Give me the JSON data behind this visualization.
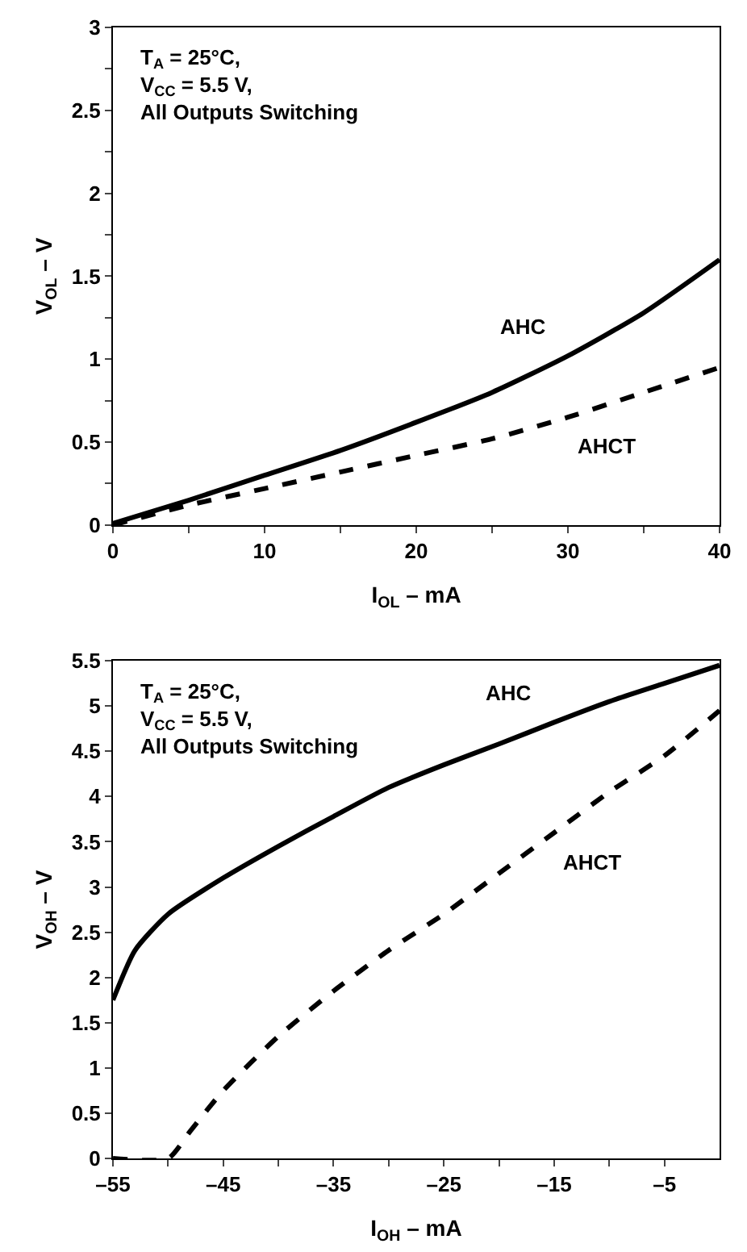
{
  "chart_data": [
    {
      "type": "line",
      "xlabel": "I$_{OL}$ – mA",
      "ylabel": "V$_{OL}$ – V",
      "xlim": [
        0,
        40
      ],
      "ylim": [
        0,
        3
      ],
      "xticks": [
        0,
        {
          "value": 5,
          "label": null
        },
        10,
        {
          "value": 15,
          "label": null
        },
        20,
        {
          "value": 25,
          "label": null
        },
        30,
        {
          "value": 35,
          "label": null
        },
        40
      ],
      "yticks": [
        0,
        {
          "value": 0.25,
          "label": null
        },
        0.5,
        {
          "value": 0.75,
          "label": null
        },
        1,
        {
          "value": 1.25,
          "label": null
        },
        1.5,
        {
          "value": 1.75,
          "label": null
        },
        2,
        {
          "value": 2.25,
          "label": null
        },
        2.5,
        {
          "value": 2.75,
          "label": null
        },
        3
      ],
      "legend": false,
      "marker": "none",
      "series": [
        {
          "name": "AHC",
          "color": "#000000",
          "line_style": "solid",
          "x": [
            0,
            5,
            10,
            15,
            20,
            25,
            30,
            35,
            40
          ],
          "values": [
            0.01,
            0.15,
            0.3,
            0.45,
            0.62,
            0.8,
            1.02,
            1.28,
            1.6
          ]
        },
        {
          "name": "AHCT",
          "color": "#000000",
          "line_style": "dashed",
          "x": [
            0,
            5,
            10,
            15,
            20,
            25,
            30,
            35,
            40
          ],
          "values": [
            0,
            0.12,
            0.22,
            0.32,
            0.42,
            0.52,
            0.65,
            0.8,
            0.95
          ]
        }
      ],
      "annotations": [
        "T$_{A}$ = 25°C,\nV$_{CC}$ = 5.5 V,\nAll Outputs Switching"
      ]
    },
    {
      "type": "line",
      "xlabel": "I$_{OH}$ – mA",
      "ylabel": "V$_{OH}$ – V",
      "xlim": [
        -55,
        0
      ],
      "ylim": [
        0,
        5.5
      ],
      "xticks": [
        {
          "value": -55,
          "label": "–55"
        },
        {
          "value": -50,
          "label": null
        },
        {
          "value": -45,
          "label": "–45"
        },
        {
          "value": -40,
          "label": null
        },
        {
          "value": -35,
          "label": "–35"
        },
        {
          "value": -30,
          "label": null
        },
        {
          "value": -25,
          "label": "–25"
        },
        {
          "value": -20,
          "label": null
        },
        {
          "value": -15,
          "label": "–15"
        },
        {
          "value": -10,
          "label": null
        },
        {
          "value": -5,
          "label": "–5"
        }
      ],
      "yticks": [
        0,
        0.5,
        1,
        1.5,
        2,
        2.5,
        3,
        3.5,
        4,
        4.5,
        5,
        5.5
      ],
      "legend": false,
      "marker": "none",
      "series": [
        {
          "name": "AHC",
          "color": "#000000",
          "line_style": "solid",
          "x": [
            -55,
            -53,
            -50,
            -45,
            -40,
            -35,
            -30,
            -25,
            -20,
            -15,
            -10,
            -5,
            0
          ],
          "values": [
            1.75,
            2.3,
            2.7,
            3.1,
            3.45,
            3.78,
            4.1,
            4.35,
            4.58,
            4.82,
            5.05,
            5.25,
            5.45
          ]
        },
        {
          "name": "AHCT",
          "color": "#000000",
          "line_style": "dashed",
          "x": [
            -55,
            -50,
            -48,
            -45,
            -40,
            -35,
            -30,
            -25,
            -20,
            -15,
            -10,
            -5,
            0
          ],
          "values": [
            0,
            0,
            0.3,
            0.75,
            1.35,
            1.85,
            2.3,
            2.7,
            3.15,
            3.6,
            4.05,
            4.45,
            4.95
          ]
        }
      ],
      "annotations": [
        "T$_{A}$ = 25°C,\nV$_{CC}$ = 5.5 V,\nAll Outputs Switching"
      ]
    }
  ]
}
